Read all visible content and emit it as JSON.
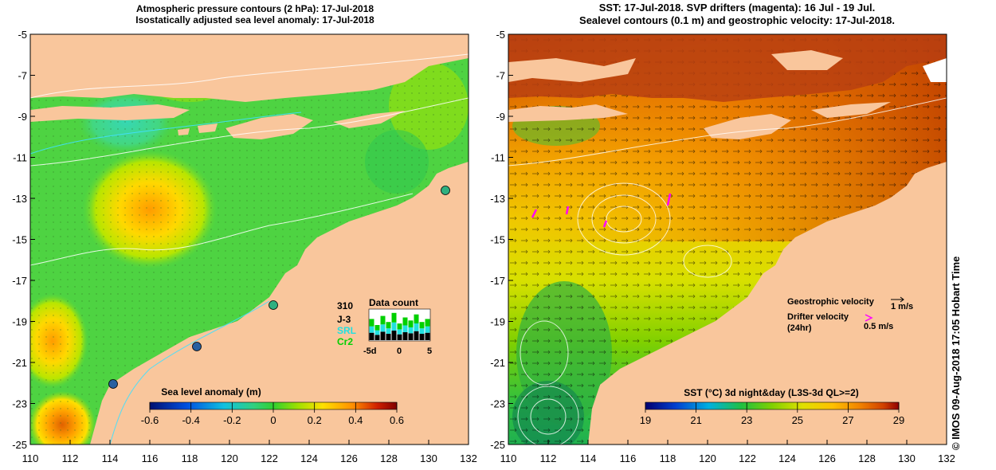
{
  "left_panel": {
    "title_line1": "Atmospheric pressure contours (2 hPa): 17-Jul-2018",
    "title_line2": "Isostatically adjusted sea level anomaly: 17-Jul-2018",
    "x_ticks": [
      "110",
      "112",
      "114",
      "116",
      "118",
      "120",
      "122",
      "124",
      "126",
      "128",
      "130",
      "132"
    ],
    "y_ticks": [
      "-5",
      "-7",
      "-9",
      "-11",
      "-13",
      "-15",
      "-17",
      "-19",
      "-21",
      "-23",
      "-25"
    ],
    "colorbar": {
      "label": "Sea level anomaly (m)",
      "ticks": [
        "-0.6",
        "-0.4",
        "-0.2",
        "0",
        "0.2",
        "0.4",
        "0.6"
      ],
      "range": [
        -0.6,
        0.6
      ]
    },
    "data_count": {
      "title": "Data count",
      "total": "310",
      "missions": [
        {
          "label": "J-3",
          "color": "#000000"
        },
        {
          "label": "SRL",
          "color": "#22e0e0"
        },
        {
          "label": "Cr2",
          "color": "#00d000"
        }
      ],
      "x_ticks": [
        "-5d",
        "0",
        "5"
      ]
    }
  },
  "right_panel": {
    "title_line1": "SST: 17-Jul-2018. SVP drifters (magenta): 16 Jul - 19 Jul.",
    "title_line2": "Sealevel contours (0.1 m) and geostrophic velocity: 17-Jul-2018.",
    "x_ticks": [
      "110",
      "112",
      "114",
      "116",
      "118",
      "120",
      "122",
      "124",
      "126",
      "128",
      "130",
      "132"
    ],
    "y_ticks": [
      "-5",
      "-7",
      "-9",
      "-11",
      "-13",
      "-15",
      "-17",
      "-19",
      "-21",
      "-23",
      "-25"
    ],
    "colorbar": {
      "label": "SST (°C) 3d night&day (L3S-3d QL>=2)",
      "ticks": [
        "19",
        "21",
        "23",
        "25",
        "27",
        "29"
      ],
      "range": [
        19,
        29
      ]
    },
    "legend": {
      "geostrophic_label": "Geostrophic velocity",
      "geostrophic_scale": "1 m/s",
      "drifter_label": "Drifter velocity",
      "drifter_label2": "(24hr)",
      "drifter_scale": "0.5 m/s"
    }
  },
  "credit": "© IMOS 09-Aug-2018 17:05 Hobart Time",
  "colors": {
    "land": "#f9c69c",
    "sla_colormap": [
      "#001070",
      "#0050e0",
      "#10c0e0",
      "#40d060",
      "#30d030",
      "#a0e000",
      "#ffe000",
      "#ff9000",
      "#d02000",
      "#800000"
    ],
    "sst_colormap": [
      "#000070",
      "#0040d0",
      "#00b0e0",
      "#20c040",
      "#80d000",
      "#e0e000",
      "#ffc000",
      "#f08000",
      "#d04000",
      "#900000"
    ]
  }
}
